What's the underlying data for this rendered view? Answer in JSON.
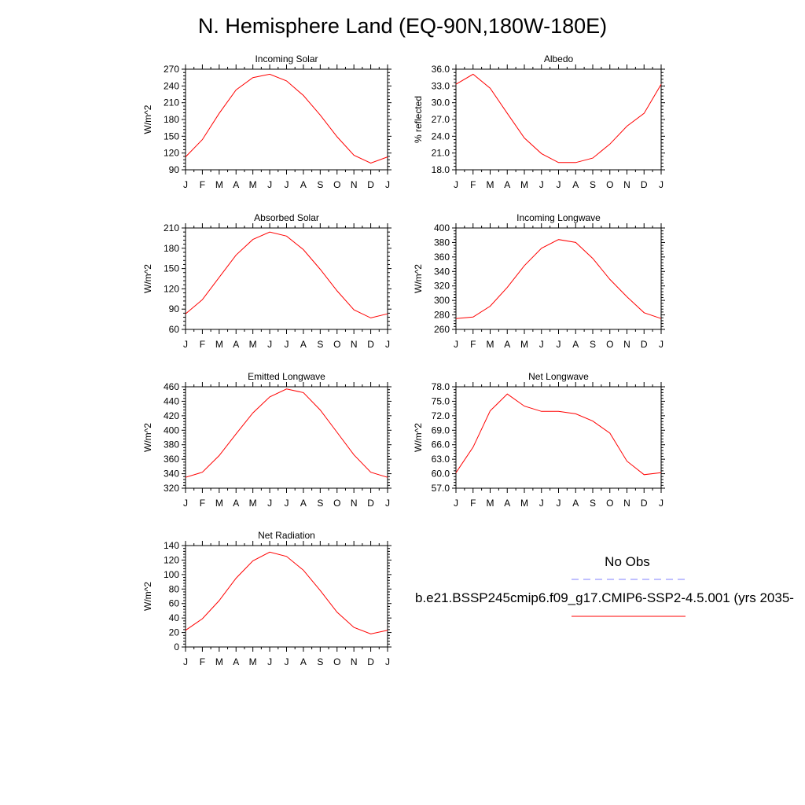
{
  "title": "N. Hemisphere Land (EQ-90N,180W-180E)",
  "colors": {
    "model_line": "#ff0000",
    "obs_line": "#8080ff",
    "axis": "#000000"
  },
  "legend": {
    "obs_label": "No Obs",
    "model_label": "b.e21.BSSP245cmip6.f09_g17.CMIP6-SSP2-4.5.001 (yrs 2035-"
  },
  "chart_data": [
    {
      "type": "line",
      "title": "Incoming Solar",
      "ylabel": "W/m^2",
      "ylim": [
        90,
        270
      ],
      "yticks": [
        "90",
        "120",
        "150",
        "180",
        "210",
        "240",
        "270"
      ],
      "x": [
        "J",
        "F",
        "M",
        "A",
        "M",
        "J",
        "J",
        "A",
        "S",
        "O",
        "N",
        "D",
        "J"
      ],
      "series": [
        {
          "values": [
            113,
            144,
            191,
            233,
            255,
            261,
            249,
            223,
            188,
            149,
            116,
            102,
            113
          ]
        }
      ]
    },
    {
      "type": "line",
      "title": "Albedo",
      "ylabel": "% reflected",
      "ylim": [
        18.0,
        36.0
      ],
      "yticks": [
        "18.0",
        "21.0",
        "24.0",
        "27.0",
        "30.0",
        "33.0",
        "36.0"
      ],
      "x": [
        "J",
        "F",
        "M",
        "A",
        "M",
        "J",
        "J",
        "A",
        "S",
        "O",
        "N",
        "D",
        "J"
      ],
      "series": [
        {
          "values": [
            33.3,
            35.1,
            32.6,
            28.1,
            23.7,
            20.9,
            19.3,
            19.3,
            20.1,
            22.6,
            25.8,
            28.1,
            33.3
          ]
        }
      ]
    },
    {
      "type": "line",
      "title": "Absorbed Solar",
      "ylabel": "W/m^2",
      "ylim": [
        60,
        210
      ],
      "yticks": [
        "60",
        "90",
        "120",
        "150",
        "180",
        "210"
      ],
      "x": [
        "J",
        "F",
        "M",
        "A",
        "M",
        "J",
        "J",
        "A",
        "S",
        "O",
        "N",
        "D",
        "J"
      ],
      "series": [
        {
          "values": [
            83,
            104,
            137,
            170,
            193,
            204,
            198,
            178,
            149,
            117,
            89,
            77,
            83
          ]
        }
      ]
    },
    {
      "type": "line",
      "title": "Incoming Longwave",
      "ylabel": "W/m^2",
      "ylim": [
        260,
        400
      ],
      "yticks": [
        "260",
        "280",
        "300",
        "320",
        "340",
        "360",
        "380",
        "400"
      ],
      "x": [
        "J",
        "F",
        "M",
        "A",
        "M",
        "J",
        "J",
        "A",
        "S",
        "O",
        "N",
        "D",
        "J"
      ],
      "series": [
        {
          "values": [
            275,
            277,
            292,
            318,
            348,
            372,
            384,
            380,
            358,
            329,
            305,
            283,
            275
          ]
        }
      ]
    },
    {
      "type": "line",
      "title": "Emitted Longwave",
      "ylabel": "W/m^2",
      "ylim": [
        320,
        460
      ],
      "yticks": [
        "320",
        "340",
        "360",
        "380",
        "400",
        "420",
        "440",
        "460"
      ],
      "x": [
        "J",
        "F",
        "M",
        "A",
        "M",
        "J",
        "J",
        "A",
        "S",
        "O",
        "N",
        "D",
        "J"
      ],
      "series": [
        {
          "values": [
            335,
            342,
            365,
            395,
            424,
            446,
            457,
            452,
            428,
            397,
            366,
            342,
            335
          ]
        }
      ]
    },
    {
      "type": "line",
      "title": "Net Longwave",
      "ylabel": "W/m^2",
      "ylim": [
        57.0,
        78.0
      ],
      "yticks": [
        "57.0",
        "60.0",
        "63.0",
        "66.0",
        "69.0",
        "72.0",
        "75.0",
        "78.0"
      ],
      "x": [
        "J",
        "F",
        "M",
        "A",
        "M",
        "J",
        "J",
        "A",
        "S",
        "O",
        "N",
        "D",
        "J"
      ],
      "series": [
        {
          "values": [
            60.2,
            65.5,
            73.0,
            76.5,
            74.0,
            72.9,
            72.9,
            72.4,
            70.9,
            68.4,
            62.6,
            59.8,
            60.2
          ]
        }
      ]
    },
    {
      "type": "line",
      "title": "Net Radiation",
      "ylabel": "W/m^2",
      "ylim": [
        0,
        140
      ],
      "yticks": [
        "0",
        "20",
        "40",
        "60",
        "80",
        "100",
        "120",
        "140"
      ],
      "x": [
        "J",
        "F",
        "M",
        "A",
        "M",
        "J",
        "J",
        "A",
        "S",
        "O",
        "N",
        "D",
        "J"
      ],
      "series": [
        {
          "values": [
            23,
            39,
            64,
            95,
            119,
            131,
            125,
            106,
            78,
            48,
            27,
            18,
            23
          ]
        }
      ]
    }
  ]
}
